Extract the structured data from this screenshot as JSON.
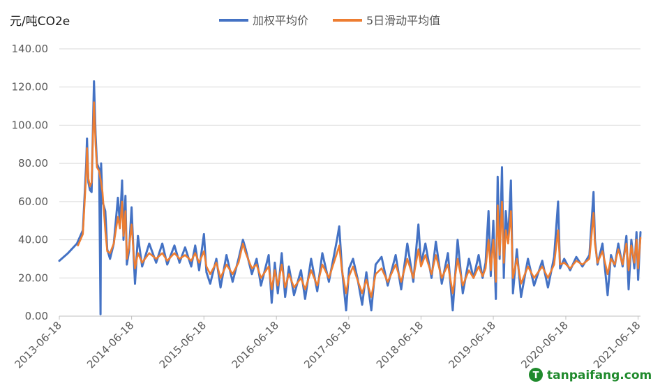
{
  "chart_data": {
    "type": "line",
    "ylabel": "元/吨CO2e",
    "ylim": [
      0,
      140
    ],
    "yticks": [
      "0.00",
      "20.00",
      "40.00",
      "60.00",
      "80.00",
      "100.00",
      "120.00",
      "140.00"
    ],
    "xlim": [
      "2013-06-18",
      "2021-06-30"
    ],
    "xticks": [
      "2013-06-18",
      "2014-06-18",
      "2015-06-18",
      "2016-06-18",
      "2017-06-18",
      "2018-06-18",
      "2019-06-18",
      "2020-06-18",
      "2021-06-18"
    ],
    "grid": true,
    "legend_position": "top-center",
    "series": [
      {
        "name": "加权平均价",
        "color": "#4472c4",
        "points": [
          [
            "2013-06-18",
            29
          ],
          [
            "2013-08-01",
            33
          ],
          [
            "2013-09-15",
            38
          ],
          [
            "2013-10-15",
            45
          ],
          [
            "2013-11-01",
            80
          ],
          [
            "2013-11-05",
            93
          ],
          [
            "2013-11-12",
            70
          ],
          [
            "2013-11-20",
            66
          ],
          [
            "2013-11-28",
            65
          ],
          [
            "2013-12-05",
            100
          ],
          [
            "2013-12-10",
            123
          ],
          [
            "2013-12-18",
            95
          ],
          [
            "2013-12-25",
            80
          ],
          [
            "2014-01-05",
            77
          ],
          [
            "2014-01-12",
            1
          ],
          [
            "2014-01-15",
            80
          ],
          [
            "2014-01-22",
            60
          ],
          [
            "2014-02-05",
            55
          ],
          [
            "2014-02-15",
            35
          ],
          [
            "2014-03-01",
            30
          ],
          [
            "2014-03-20",
            38
          ],
          [
            "2014-04-10",
            62
          ],
          [
            "2014-04-20",
            48
          ],
          [
            "2014-05-01",
            71
          ],
          [
            "2014-05-08",
            40
          ],
          [
            "2014-05-18",
            63
          ],
          [
            "2014-05-25",
            27
          ],
          [
            "2014-06-05",
            34
          ],
          [
            "2014-06-18",
            57
          ],
          [
            "2014-06-28",
            32
          ],
          [
            "2014-07-05",
            17
          ],
          [
            "2014-07-20",
            42
          ],
          [
            "2014-08-10",
            26
          ],
          [
            "2014-09-15",
            38
          ],
          [
            "2014-10-20",
            28
          ],
          [
            "2014-11-20",
            38
          ],
          [
            "2014-12-15",
            27
          ],
          [
            "2015-01-20",
            37
          ],
          [
            "2015-02-15",
            28
          ],
          [
            "2015-03-15",
            36
          ],
          [
            "2015-04-15",
            26
          ],
          [
            "2015-05-05",
            37
          ],
          [
            "2015-05-25",
            24
          ],
          [
            "2015-06-18",
            43
          ],
          [
            "2015-07-01",
            23
          ],
          [
            "2015-07-20",
            17
          ],
          [
            "2015-08-20",
            30
          ],
          [
            "2015-09-10",
            15
          ],
          [
            "2015-10-10",
            32
          ],
          [
            "2015-11-10",
            18
          ],
          [
            "2015-12-10",
            30
          ],
          [
            "2016-01-01",
            40
          ],
          [
            "2016-01-15",
            35
          ],
          [
            "2016-02-15",
            22
          ],
          [
            "2016-03-10",
            30
          ],
          [
            "2016-04-01",
            16
          ],
          [
            "2016-05-10",
            32
          ],
          [
            "2016-05-25",
            7
          ],
          [
            "2016-06-10",
            28
          ],
          [
            "2016-06-25",
            12
          ],
          [
            "2016-07-15",
            33
          ],
          [
            "2016-08-01",
            10
          ],
          [
            "2016-08-20",
            26
          ],
          [
            "2016-09-15",
            11
          ],
          [
            "2016-10-20",
            24
          ],
          [
            "2016-11-10",
            9
          ],
          [
            "2016-12-10",
            30
          ],
          [
            "2017-01-10",
            13
          ],
          [
            "2017-02-05",
            33
          ],
          [
            "2017-03-10",
            18
          ],
          [
            "2017-04-20",
            40
          ],
          [
            "2017-05-01",
            47
          ],
          [
            "2017-05-15",
            25
          ],
          [
            "2017-06-05",
            3
          ],
          [
            "2017-06-20",
            25
          ],
          [
            "2017-07-10",
            30
          ],
          [
            "2017-08-01",
            20
          ],
          [
            "2017-08-25",
            6
          ],
          [
            "2017-09-15",
            23
          ],
          [
            "2017-10-10",
            3
          ],
          [
            "2017-11-01",
            27
          ],
          [
            "2017-12-01",
            31
          ],
          [
            "2018-01-01",
            16
          ],
          [
            "2018-02-10",
            32
          ],
          [
            "2018-03-10",
            14
          ],
          [
            "2018-04-10",
            38
          ],
          [
            "2018-05-10",
            18
          ],
          [
            "2018-06-05",
            48
          ],
          [
            "2018-06-18",
            27
          ],
          [
            "2018-07-10",
            38
          ],
          [
            "2018-08-10",
            20
          ],
          [
            "2018-09-01",
            39
          ],
          [
            "2018-10-01",
            17
          ],
          [
            "2018-11-01",
            33
          ],
          [
            "2018-11-25",
            3
          ],
          [
            "2018-12-20",
            40
          ],
          [
            "2019-01-15",
            12
          ],
          [
            "2019-02-15",
            30
          ],
          [
            "2019-03-10",
            20
          ],
          [
            "2019-04-05",
            32
          ],
          [
            "2019-04-25",
            20
          ],
          [
            "2019-05-10",
            28
          ],
          [
            "2019-05-25",
            55
          ],
          [
            "2019-06-05",
            21
          ],
          [
            "2019-06-18",
            50
          ],
          [
            "2019-07-01",
            9
          ],
          [
            "2019-07-10",
            73
          ],
          [
            "2019-07-20",
            30
          ],
          [
            "2019-08-01",
            78
          ],
          [
            "2019-08-10",
            20
          ],
          [
            "2019-08-20",
            55
          ],
          [
            "2019-09-01",
            40
          ],
          [
            "2019-09-15",
            71
          ],
          [
            "2019-09-25",
            12
          ],
          [
            "2019-10-15",
            35
          ],
          [
            "2019-11-05",
            10
          ],
          [
            "2019-12-10",
            30
          ],
          [
            "2020-01-10",
            16
          ],
          [
            "2020-02-20",
            29
          ],
          [
            "2020-03-20",
            15
          ],
          [
            "2020-04-20",
            31
          ],
          [
            "2020-05-10",
            60
          ],
          [
            "2020-05-20",
            25
          ],
          [
            "2020-06-10",
            30
          ],
          [
            "2020-07-10",
            24
          ],
          [
            "2020-08-10",
            31
          ],
          [
            "2020-09-10",
            26
          ],
          [
            "2020-10-15",
            32
          ],
          [
            "2020-11-05",
            65
          ],
          [
            "2020-11-12",
            40
          ],
          [
            "2020-11-25",
            27
          ],
          [
            "2020-12-20",
            38
          ],
          [
            "2021-01-15",
            11
          ],
          [
            "2021-02-01",
            32
          ],
          [
            "2021-02-20",
            26
          ],
          [
            "2021-03-10",
            38
          ],
          [
            "2021-04-01",
            26
          ],
          [
            "2021-04-20",
            42
          ],
          [
            "2021-05-01",
            14
          ],
          [
            "2021-05-15",
            40
          ],
          [
            "2021-05-30",
            25
          ],
          [
            "2021-06-10",
            44
          ],
          [
            "2021-06-18",
            19
          ],
          [
            "2021-06-30",
            44
          ]
        ]
      },
      {
        "name": "5日滑动平均值",
        "color": "#ed7d31",
        "points": [
          [
            "2013-09-20",
            37
          ],
          [
            "2013-10-15",
            43
          ],
          [
            "2013-11-01",
            75
          ],
          [
            "2013-11-05",
            88
          ],
          [
            "2013-11-12",
            72
          ],
          [
            "2013-11-20",
            68
          ],
          [
            "2013-11-28",
            70
          ],
          [
            "2013-12-05",
            95
          ],
          [
            "2013-12-10",
            112
          ],
          [
            "2013-12-18",
            90
          ],
          [
            "2013-12-25",
            78
          ],
          [
            "2014-01-05",
            76
          ],
          [
            "2014-01-15",
            70
          ],
          [
            "2014-01-22",
            65
          ],
          [
            "2014-02-05",
            45
          ],
          [
            "2014-02-15",
            34
          ],
          [
            "2014-03-01",
            33
          ],
          [
            "2014-03-20",
            38
          ],
          [
            "2014-04-10",
            52
          ],
          [
            "2014-04-20",
            46
          ],
          [
            "2014-05-01",
            60
          ],
          [
            "2014-05-08",
            42
          ],
          [
            "2014-05-18",
            55
          ],
          [
            "2014-05-25",
            30
          ],
          [
            "2014-06-05",
            36
          ],
          [
            "2014-06-18",
            48
          ],
          [
            "2014-06-28",
            33
          ],
          [
            "2014-07-05",
            25
          ],
          [
            "2014-07-20",
            33
          ],
          [
            "2014-08-10",
            28
          ],
          [
            "2014-09-15",
            33
          ],
          [
            "2014-10-20",
            30
          ],
          [
            "2014-11-20",
            33
          ],
          [
            "2014-12-15",
            29
          ],
          [
            "2015-01-20",
            33
          ],
          [
            "2015-02-15",
            30
          ],
          [
            "2015-03-15",
            32
          ],
          [
            "2015-04-15",
            29
          ],
          [
            "2015-05-05",
            33
          ],
          [
            "2015-05-25",
            28
          ],
          [
            "2015-06-18",
            34
          ],
          [
            "2015-07-01",
            26
          ],
          [
            "2015-07-20",
            22
          ],
          [
            "2015-08-20",
            28
          ],
          [
            "2015-09-10",
            20
          ],
          [
            "2015-10-10",
            27
          ],
          [
            "2015-11-10",
            22
          ],
          [
            "2015-12-10",
            28
          ],
          [
            "2016-01-01",
            38
          ],
          [
            "2016-01-15",
            33
          ],
          [
            "2016-02-15",
            25
          ],
          [
            "2016-03-10",
            27
          ],
          [
            "2016-04-01",
            20
          ],
          [
            "2016-05-10",
            26
          ],
          [
            "2016-05-25",
            14
          ],
          [
            "2016-06-10",
            24
          ],
          [
            "2016-06-25",
            16
          ],
          [
            "2016-07-15",
            27
          ],
          [
            "2016-08-01",
            15
          ],
          [
            "2016-08-20",
            22
          ],
          [
            "2016-09-15",
            15
          ],
          [
            "2016-10-20",
            20
          ],
          [
            "2016-11-10",
            14
          ],
          [
            "2016-12-10",
            24
          ],
          [
            "2017-01-10",
            16
          ],
          [
            "2017-02-05",
            27
          ],
          [
            "2017-03-10",
            20
          ],
          [
            "2017-04-20",
            33
          ],
          [
            "2017-05-01",
            37
          ],
          [
            "2017-05-15",
            24
          ],
          [
            "2017-06-05",
            12
          ],
          [
            "2017-06-20",
            21
          ],
          [
            "2017-07-10",
            26
          ],
          [
            "2017-08-01",
            19
          ],
          [
            "2017-08-25",
            12
          ],
          [
            "2017-09-15",
            19
          ],
          [
            "2017-10-10",
            10
          ],
          [
            "2017-11-01",
            22
          ],
          [
            "2017-12-01",
            25
          ],
          [
            "2018-01-01",
            18
          ],
          [
            "2018-02-10",
            27
          ],
          [
            "2018-03-10",
            18
          ],
          [
            "2018-04-10",
            30
          ],
          [
            "2018-05-10",
            20
          ],
          [
            "2018-06-05",
            35
          ],
          [
            "2018-06-18",
            26
          ],
          [
            "2018-07-10",
            32
          ],
          [
            "2018-08-10",
            22
          ],
          [
            "2018-09-01",
            32
          ],
          [
            "2018-10-01",
            20
          ],
          [
            "2018-11-01",
            27
          ],
          [
            "2018-11-25",
            12
          ],
          [
            "2018-12-20",
            30
          ],
          [
            "2019-01-15",
            16
          ],
          [
            "2019-02-15",
            24
          ],
          [
            "2019-03-10",
            20
          ],
          [
            "2019-04-05",
            26
          ],
          [
            "2019-04-25",
            21
          ],
          [
            "2019-05-10",
            25
          ],
          [
            "2019-05-25",
            40
          ],
          [
            "2019-06-05",
            24
          ],
          [
            "2019-06-18",
            40
          ],
          [
            "2019-07-01",
            18
          ],
          [
            "2019-07-10",
            58
          ],
          [
            "2019-07-20",
            32
          ],
          [
            "2019-08-01",
            60
          ],
          [
            "2019-08-10",
            28
          ],
          [
            "2019-08-20",
            45
          ],
          [
            "2019-09-01",
            38
          ],
          [
            "2019-09-15",
            55
          ],
          [
            "2019-09-25",
            20
          ],
          [
            "2019-10-15",
            30
          ],
          [
            "2019-11-05",
            17
          ],
          [
            "2019-12-10",
            26
          ],
          [
            "2020-01-10",
            20
          ],
          [
            "2020-02-20",
            26
          ],
          [
            "2020-03-20",
            20
          ],
          [
            "2020-04-20",
            27
          ],
          [
            "2020-05-10",
            45
          ],
          [
            "2020-05-20",
            27
          ],
          [
            "2020-06-10",
            28
          ],
          [
            "2020-07-10",
            25
          ],
          [
            "2020-08-10",
            29
          ],
          [
            "2020-09-10",
            27
          ],
          [
            "2020-10-15",
            30
          ],
          [
            "2020-11-05",
            54
          ],
          [
            "2020-11-12",
            38
          ],
          [
            "2020-11-25",
            28
          ],
          [
            "2020-12-20",
            34
          ],
          [
            "2021-01-15",
            22
          ],
          [
            "2021-02-01",
            30
          ],
          [
            "2021-02-20",
            27
          ],
          [
            "2021-03-10",
            35
          ],
          [
            "2021-04-01",
            27
          ],
          [
            "2021-04-20",
            38
          ],
          [
            "2021-05-01",
            24
          ],
          [
            "2021-05-15",
            37
          ],
          [
            "2021-05-30",
            28
          ],
          [
            "2021-06-10",
            40
          ],
          [
            "2021-06-18",
            25
          ],
          [
            "2021-06-30",
            41
          ]
        ]
      }
    ]
  },
  "watermark": {
    "text": "tanpaifang.com",
    "logo_letter": "T",
    "color": "#1f8a2c"
  }
}
